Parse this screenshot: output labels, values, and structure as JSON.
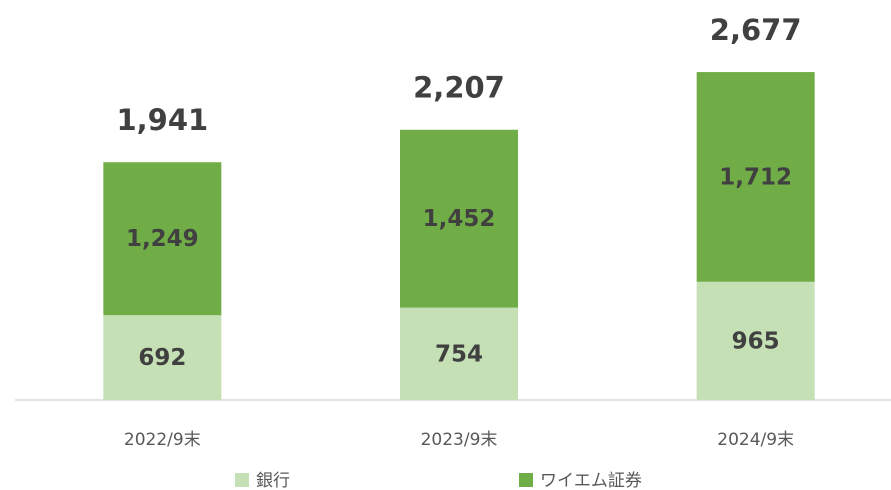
{
  "chart_data": {
    "type": "stacked_bar",
    "categories": [
      "2022/9末",
      "2023/9末",
      "2024/9末"
    ],
    "series": [
      {
        "name": "銀行",
        "color": "#c5e0b4",
        "values": [
          692,
          754,
          965
        ],
        "value_labels": [
          "692",
          "754",
          "965"
        ]
      },
      {
        "name": "ワイエム証券",
        "color": "#70ad47",
        "values": [
          1249,
          1452,
          1712
        ],
        "value_labels": [
          "1,249",
          "1,452",
          "1,712"
        ]
      }
    ],
    "totals": [
      1941,
      2207,
      2677
    ],
    "total_labels": [
      "1,941",
      "2,207",
      "2,677"
    ]
  }
}
